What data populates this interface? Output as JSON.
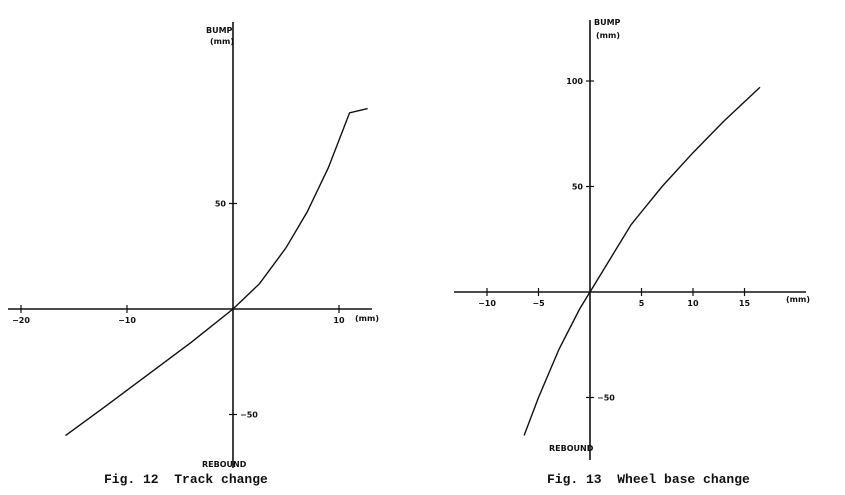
{
  "chart_data": [
    {
      "type": "line",
      "caption": "Fig. 12  Track change",
      "x_unit": "(mm)",
      "y_label_top": "BUMP",
      "y_unit": "(mm)",
      "y_label_bottom": "REBOUND",
      "x_ticks": [
        -20,
        -10,
        10
      ],
      "y_ticks": [
        50,
        -50
      ],
      "xlim": [
        -21,
        13
      ],
      "ylim": [
        -75,
        135
      ],
      "series": [
        {
          "x": [
            -15.8,
            -12,
            -8,
            -4,
            -2,
            0,
            2.5,
            5,
            7,
            9,
            11,
            12.7
          ],
          "y": [
            -60,
            -46,
            -31,
            -16,
            -8,
            0,
            12,
            29,
            46,
            67,
            93,
            95
          ]
        }
      ]
    },
    {
      "type": "line",
      "caption": "Fig. 13  Wheel base change",
      "x_unit": "(mm)",
      "y_label_top": "BUMP",
      "y_unit": "(mm)",
      "y_label_bottom": "REBOUND",
      "x_ticks": [
        -10,
        -5,
        5,
        10,
        15
      ],
      "y_ticks": [
        100,
        50,
        -50
      ],
      "xlim": [
        -12.5,
        20
      ],
      "ylim": [
        -75,
        135
      ],
      "series": [
        {
          "x": [
            -6.4,
            -5,
            -3,
            -1,
            0,
            2,
            4,
            7,
            10,
            13,
            16.5
          ],
          "y": [
            -68,
            -50,
            -27,
            -8,
            0,
            16,
            32,
            50,
            66,
            81,
            97
          ]
        }
      ]
    }
  ]
}
